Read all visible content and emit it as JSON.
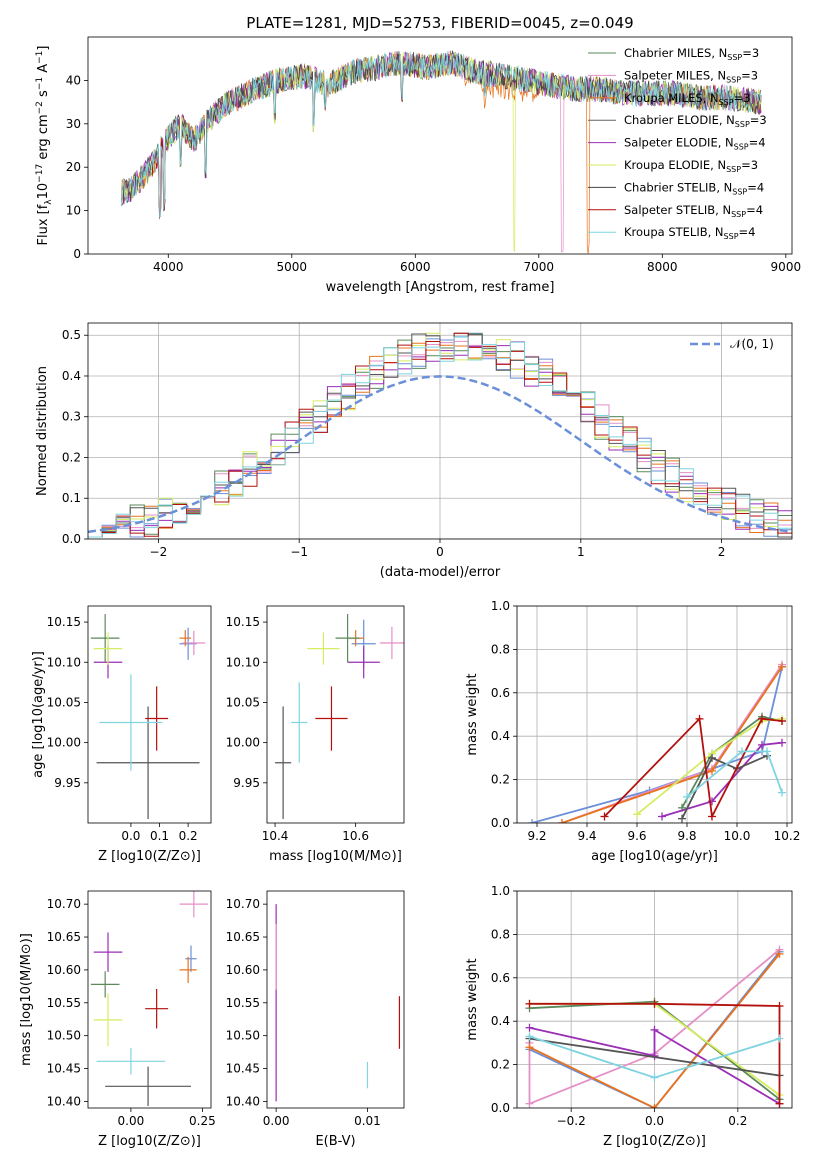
{
  "figure_title": "PLATE=1281, MJD=52753, FIBERID=0045, z=0.049",
  "colors": [
    "#5a8a5a",
    "#e58fc7",
    "#e8731c",
    "#636363",
    "#9a2eb5",
    "#d6ec62",
    "#444444",
    "#b2110e",
    "#7fd4e0"
  ],
  "fit_colors": [
    "#6b8fd8",
    "#e58fc7",
    "#e8731c",
    "#5a8a5a",
    "#9a2eb5",
    "#d6ec62",
    "#555555",
    "#b2110e",
    "#7fd4e0"
  ],
  "chart_data": [
    {
      "id": "spectrum",
      "type": "line",
      "title": "PLATE=1281, MJD=52753, FIBERID=0045, z=0.049",
      "xlabel": "wavelength [Angstrom, rest frame]",
      "ylabel_main": "Flux [f",
      "ylabel_sub": "λ",
      "ylabel_mid": "10",
      "ylabel_exp1": "−17",
      "ylabel_rest": " erg cm",
      "ylabel_exp2": "−2",
      "ylabel_rest2": " s",
      "ylabel_exp3": "−1",
      "ylabel_rest3": " A",
      "ylabel_exp4": "−1",
      "ylabel_end": "]",
      "xlim": [
        3350,
        9050
      ],
      "ylim": [
        0,
        50
      ],
      "xticks": [
        4000,
        5000,
        6000,
        7000,
        8000,
        9000
      ],
      "yticks": [
        0,
        10,
        20,
        30,
        40
      ],
      "legend_position": "top-right",
      "legend": [
        {
          "name": "Chabrier MILES, N",
          "sub": "SSP",
          "tail": "=3"
        },
        {
          "name": "Salpeter MILES, N",
          "sub": "SSP",
          "tail": "=3"
        },
        {
          "name": "Kroupa MILES, N",
          "sub": "SSP",
          "tail": "=3"
        },
        {
          "name": "Chabrier ELODIE, N",
          "sub": "SSP",
          "tail": "=3"
        },
        {
          "name": "Salpeter ELODIE, N",
          "sub": "SSP",
          "tail": "=4"
        },
        {
          "name": "Kroupa ELODIE, N",
          "sub": "SSP",
          "tail": "=3"
        },
        {
          "name": "Chabrier STELIB, N",
          "sub": "SSP",
          "tail": "=4"
        },
        {
          "name": "Salpeter STELIB, N",
          "sub": "SSP",
          "tail": "=4"
        },
        {
          "name": "Kroupa STELIB, N",
          "sub": "SSP",
          "tail": "=4"
        }
      ],
      "continuum": {
        "x": [
          3600,
          3700,
          3800,
          3900,
          4000,
          4100,
          4200,
          4300,
          4400,
          4500,
          4700,
          4900,
          5100,
          5300,
          5500,
          5700,
          5900,
          6100,
          6300,
          6500,
          6700,
          6900,
          7100,
          7300,
          7500,
          7700,
          7900,
          8100,
          8300,
          8500,
          8800
        ],
        "y": [
          14,
          15,
          18,
          22,
          27,
          30,
          26,
          30,
          33,
          35,
          38,
          40,
          41,
          39,
          42,
          43,
          44,
          43,
          44,
          42,
          41,
          40,
          39,
          38,
          38,
          37,
          37,
          37,
          36,
          36,
          35
        ]
      },
      "dips": [
        {
          "x": 3933,
          "y": 8
        },
        {
          "x": 3968,
          "y": 10
        },
        {
          "x": 4102,
          "y": 20
        },
        {
          "x": 4300,
          "y": 17
        },
        {
          "x": 4861,
          "y": 30
        },
        {
          "x": 5175,
          "y": 28
        },
        {
          "x": 5270,
          "y": 33
        },
        {
          "x": 5890,
          "y": 35
        },
        {
          "x": 6563,
          "y": 36
        },
        {
          "x": 6800,
          "y": 0
        },
        {
          "x": 7190,
          "y": 0
        },
        {
          "x": 7400,
          "y": 0
        }
      ]
    },
    {
      "id": "residuals",
      "type": "line",
      "xlabel": "(data-model)/error",
      "ylabel": "Normed distribution",
      "xlim": [
        -2.5,
        2.5
      ],
      "ylim": [
        0,
        0.53
      ],
      "xticks": [
        -2,
        -1,
        0,
        1,
        2
      ],
      "xtick_labels": [
        "−2",
        "−1",
        "0",
        "1",
        "2"
      ],
      "yticks": [
        0.0,
        0.1,
        0.2,
        0.3,
        0.4,
        0.5
      ],
      "ytick_labels": [
        "0.0",
        "0.1",
        "0.2",
        "0.3",
        "0.4",
        "0.5"
      ],
      "grid": true,
      "legend_position": "top-right",
      "reference_label": "𝒩(0, 1)",
      "reference": "normal(0,1)",
      "bin_width": 0.1
    },
    {
      "id": "age-vs-Z",
      "type": "scatter",
      "xlabel": "Z [log10(Z/Z⊙)]",
      "ylabel": "age  [log10(age/yr)]",
      "xlim": [
        -0.15,
        0.28
      ],
      "ylim": [
        9.9,
        10.17
      ],
      "xticks": [
        0.0,
        0.1,
        0.2
      ],
      "xtick_labels": [
        "0.0",
        "0.1",
        "0.2"
      ],
      "yticks": [
        9.95,
        10.0,
        10.05,
        10.1,
        10.15
      ],
      "ytick_labels": [
        "9.95",
        "10.00",
        "10.05",
        "10.10",
        "10.15"
      ],
      "points": [
        {
          "x": 0.2,
          "y": 10.123,
          "xerr": 0.03,
          "yerr": 0.02
        },
        {
          "x": 0.22,
          "y": 10.124,
          "xerr": 0.04,
          "yerr": 0.015
        },
        {
          "x": 0.19,
          "y": 10.13,
          "xerr": 0.02,
          "yerr": 0.01
        },
        {
          "x": -0.09,
          "y": 10.13,
          "xerr": 0.05,
          "yerr": 0.03
        },
        {
          "x": -0.08,
          "y": 10.1,
          "xerr": 0.05,
          "yerr": 0.02
        },
        {
          "x": -0.08,
          "y": 10.117,
          "xerr": 0.05,
          "yerr": 0.02
        },
        {
          "x": 0.06,
          "y": 9.975,
          "xerr": 0.18,
          "yerr": 0.07
        },
        {
          "x": 0.09,
          "y": 10.03,
          "xerr": 0.04,
          "yerr": 0.04
        },
        {
          "x": 0.0,
          "y": 10.025,
          "xerr": 0.11,
          "yerr": 0.06
        }
      ]
    },
    {
      "id": "age-vs-mass",
      "type": "scatter",
      "xlabel": "mass [log10(M/M⊙)]",
      "ylabel": "",
      "xlim": [
        10.38,
        10.72
      ],
      "ylim": [
        9.9,
        10.17
      ],
      "xticks": [
        10.4,
        10.6
      ],
      "xtick_labels": [
        "10.4",
        "10.6"
      ],
      "yticks": [
        9.95,
        10.0,
        10.05,
        10.1,
        10.15
      ],
      "ytick_labels": [
        "9.95",
        "10.00",
        "10.05",
        "10.10",
        "10.15"
      ],
      "points": [
        {
          "x": 10.62,
          "y": 10.123,
          "xerr": 0.03,
          "yerr": 0.03
        },
        {
          "x": 10.69,
          "y": 10.124,
          "xerr": 0.03,
          "yerr": 0.02
        },
        {
          "x": 10.6,
          "y": 10.13,
          "xerr": 0.02,
          "yerr": 0.01
        },
        {
          "x": 10.58,
          "y": 10.13,
          "xerr": 0.03,
          "yerr": 0.03
        },
        {
          "x": 10.62,
          "y": 10.1,
          "xerr": 0.04,
          "yerr": 0.02
        },
        {
          "x": 10.52,
          "y": 10.117,
          "xerr": 0.04,
          "yerr": 0.02
        },
        {
          "x": 10.42,
          "y": 9.975,
          "xerr": 0.02,
          "yerr": 0.07
        },
        {
          "x": 10.54,
          "y": 10.03,
          "xerr": 0.04,
          "yerr": 0.04
        },
        {
          "x": 10.46,
          "y": 10.025,
          "xerr": 0.02,
          "yerr": 0.05
        }
      ]
    },
    {
      "id": "weight-vs-age",
      "type": "line",
      "xlabel": "age  [log10(age/yr)]",
      "ylabel": "mass weight",
      "xlim": [
        9.12,
        10.22
      ],
      "ylim": [
        0.0,
        1.0
      ],
      "xticks": [
        9.2,
        9.4,
        9.6,
        9.8,
        10.0,
        10.2
      ],
      "xtick_labels": [
        "9.2",
        "9.4",
        "9.6",
        "9.8",
        "10.0",
        "10.2"
      ],
      "yticks": [
        0.0,
        0.2,
        0.4,
        0.6,
        0.8,
        1.0
      ],
      "ytick_labels": [
        "0.0",
        "0.2",
        "0.4",
        "0.6",
        "0.8",
        "1.0"
      ],
      "grid": true,
      "series": [
        {
          "x": [
            9.18,
            9.65,
            10.1,
            10.18
          ],
          "y": [
            0.0,
            0.15,
            0.33,
            0.72
          ]
        },
        {
          "x": [
            9.3,
            9.9,
            10.18
          ],
          "y": [
            0.0,
            0.25,
            0.73
          ]
        },
        {
          "x": [
            9.3,
            9.9,
            10.18
          ],
          "y": [
            0.0,
            0.24,
            0.72
          ]
        },
        {
          "x": [
            9.78,
            9.9,
            10.1,
            10.18
          ],
          "y": [
            0.07,
            0.32,
            0.49,
            0.47
          ]
        },
        {
          "x": [
            9.7,
            9.9,
            10.1,
            10.18
          ],
          "y": [
            0.03,
            0.1,
            0.36,
            0.37
          ]
        },
        {
          "x": [
            9.6,
            9.9,
            10.1,
            10.18
          ],
          "y": [
            0.04,
            0.32,
            0.47,
            0.48
          ]
        },
        {
          "x": [
            9.78,
            9.9,
            10.0,
            10.12
          ],
          "y": [
            0.02,
            0.3,
            0.25,
            0.31
          ]
        },
        {
          "x": [
            9.47,
            9.85,
            9.9,
            10.1,
            10.18
          ],
          "y": [
            0.03,
            0.48,
            0.03,
            0.48,
            0.47
          ]
        },
        {
          "x": [
            9.8,
            10.02,
            10.12,
            10.18
          ],
          "y": [
            0.12,
            0.33,
            0.33,
            0.14
          ]
        }
      ]
    },
    {
      "id": "mass-vs-Z",
      "type": "scatter",
      "xlabel": "Z [log10(Z/Z⊙)]",
      "ylabel": "mass [log10(M/M⊙)]",
      "xlim": [
        -0.15,
        0.28
      ],
      "ylim": [
        10.39,
        10.72
      ],
      "xticks": [
        0.0,
        0.25
      ],
      "xtick_labels": [
        "0.00",
        "0.25"
      ],
      "yticks": [
        10.4,
        10.45,
        10.5,
        10.55,
        10.6,
        10.65,
        10.7
      ],
      "ytick_labels": [
        "10.40",
        "10.45",
        "10.50",
        "10.55",
        "10.60",
        "10.65",
        "10.70"
      ],
      "points": [
        {
          "x": 0.21,
          "y": 10.617,
          "xerr": 0.02,
          "yerr": 0.02
        },
        {
          "x": 0.22,
          "y": 10.7,
          "xerr": 0.05,
          "yerr": 0.02
        },
        {
          "x": 0.2,
          "y": 10.6,
          "xerr": 0.03,
          "yerr": 0.02
        },
        {
          "x": -0.09,
          "y": 10.578,
          "xerr": 0.05,
          "yerr": 0.02
        },
        {
          "x": -0.08,
          "y": 10.627,
          "xerr": 0.05,
          "yerr": 0.03
        },
        {
          "x": -0.08,
          "y": 10.524,
          "xerr": 0.05,
          "yerr": 0.04
        },
        {
          "x": 0.06,
          "y": 10.423,
          "xerr": 0.15,
          "yerr": 0.03
        },
        {
          "x": 0.09,
          "y": 10.541,
          "xerr": 0.04,
          "yerr": 0.03
        },
        {
          "x": 0.0,
          "y": 10.461,
          "xerr": 0.12,
          "yerr": 0.02
        }
      ]
    },
    {
      "id": "mass-vs-ebv",
      "type": "scatter",
      "xlabel": "E(B-V)",
      "ylabel": "",
      "xlim": [
        -0.001,
        0.014
      ],
      "ylim": [
        10.39,
        10.72
      ],
      "xticks": [
        0.0,
        0.01
      ],
      "xtick_labels": [
        "0.00",
        "0.01"
      ],
      "yticks": [
        10.4,
        10.45,
        10.5,
        10.55,
        10.6,
        10.65,
        10.7
      ],
      "ytick_labels": [
        "10.40",
        "10.45",
        "10.50",
        "10.55",
        "10.60",
        "10.65",
        "10.70"
      ],
      "points": [
        {
          "x": 0.0,
          "y": 10.55,
          "xerr": 0.0,
          "yerr": 0.15
        },
        {
          "x": 0.0,
          "y": 10.62,
          "xerr": 0.0,
          "yerr": 0.05
        },
        {
          "x": 0.01,
          "y": 10.44,
          "xerr": 0.0,
          "yerr": 0.02
        },
        {
          "x": 0.0135,
          "y": 10.52,
          "xerr": 0.0,
          "yerr": 0.04
        }
      ]
    },
    {
      "id": "weight-vs-Z",
      "type": "line",
      "xlabel": "Z [log10(Z/Z⊙)]",
      "ylabel": "mass weight",
      "xlim": [
        -0.33,
        0.33
      ],
      "ylim": [
        0.0,
        1.0
      ],
      "xticks": [
        -0.2,
        0.0,
        0.2
      ],
      "xtick_labels": [
        "−0.2",
        "0.0",
        "0.2"
      ],
      "yticks": [
        0.0,
        0.2,
        0.4,
        0.6,
        0.8,
        1.0
      ],
      "ytick_labels": [
        "0.0",
        "0.2",
        "0.4",
        "0.6",
        "0.8",
        "1.0"
      ],
      "grid": true,
      "series": [
        {
          "x": [
            -0.3,
            0.0,
            0.3
          ],
          "y": [
            0.27,
            0.0,
            0.72
          ]
        },
        {
          "x": [
            -0.3,
            -0.3,
            0.0,
            0.3
          ],
          "y": [
            0.3,
            0.02,
            0.25,
            0.73
          ]
        },
        {
          "x": [
            -0.3,
            0.0,
            0.3
          ],
          "y": [
            0.28,
            0.0,
            0.71
          ]
        },
        {
          "x": [
            -0.3,
            0.0,
            0.3
          ],
          "y": [
            0.46,
            0.49,
            0.04
          ]
        },
        {
          "x": [
            -0.3,
            0.0,
            0.0,
            0.3
          ],
          "y": [
            0.37,
            0.24,
            0.36,
            0.02
          ]
        },
        {
          "x": [
            -0.3,
            0.0,
            0.3
          ],
          "y": [
            0.48,
            0.48,
            0.06
          ]
        },
        {
          "x": [
            -0.3,
            0.3
          ],
          "y": [
            0.32,
            0.15
          ]
        },
        {
          "x": [
            -0.3,
            0.0,
            0.3,
            0.3
          ],
          "y": [
            0.48,
            0.48,
            0.47,
            0.02
          ]
        },
        {
          "x": [
            -0.3,
            0.0,
            0.3
          ],
          "y": [
            0.33,
            0.14,
            0.32
          ]
        }
      ]
    }
  ]
}
